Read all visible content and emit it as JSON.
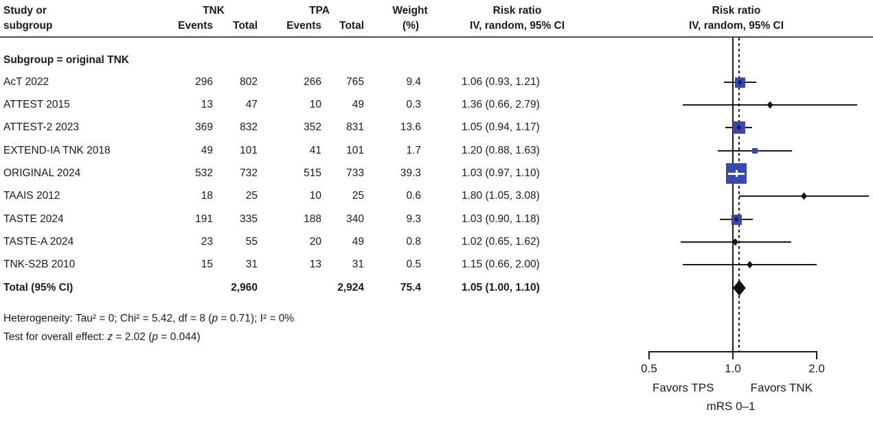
{
  "header": {
    "study_line1": "Study or",
    "study_line2": "subgroup",
    "tnk": "TNK",
    "tpa": "TPA",
    "events": "Events",
    "total": "Total",
    "weight_line1": "Weight",
    "weight_line2": "(%)",
    "risk_ratio_line1": "Risk ratio",
    "risk_ratio_line2": "IV, random, 95% CI"
  },
  "subgroup_label": "Subgroup = original TNK",
  "chart_data": {
    "type": "forest",
    "effect_measure": "Risk ratio, IV, random, 95% CI",
    "x_scale": "log",
    "x_ticks": [
      "0.5",
      "1.0",
      "2.0"
    ],
    "x_tick_values": [
      0.5,
      1.0,
      2.0
    ],
    "reference_line": 1.0,
    "pooled_estimate_line": 1.05,
    "studies": [
      {
        "name": "AcT 2022",
        "tnk_events": "296",
        "tnk_total": "802",
        "tpa_events": "266",
        "tpa_total": "765",
        "weight": "9.4",
        "weight_num": 9.4,
        "rr_text": "1.06 (0.93, 1.21)",
        "est": 1.06,
        "lo": 0.93,
        "hi": 1.21,
        "marker": "square"
      },
      {
        "name": "ATTEST 2015",
        "tnk_events": "13",
        "tnk_total": "47",
        "tpa_events": "10",
        "tpa_total": "49",
        "weight": "0.3",
        "weight_num": 0.3,
        "rr_text": "1.36 (0.66, 2.79)",
        "est": 1.36,
        "lo": 0.66,
        "hi": 2.79,
        "marker": "diamond"
      },
      {
        "name": "ATTEST-2 2023",
        "tnk_events": "369",
        "tnk_total": "832",
        "tpa_events": "352",
        "tpa_total": "831",
        "weight": "13.6",
        "weight_num": 13.6,
        "rr_text": "1.05 (0.94, 1.17)",
        "est": 1.05,
        "lo": 0.94,
        "hi": 1.17,
        "marker": "square"
      },
      {
        "name": "EXTEND-IA TNK 2018",
        "tnk_events": "49",
        "tnk_total": "101",
        "tpa_events": "41",
        "tpa_total": "101",
        "weight": "1.7",
        "weight_num": 1.7,
        "rr_text": "1.20 (0.88, 1.63)",
        "est": 1.2,
        "lo": 0.88,
        "hi": 1.63,
        "marker": "square"
      },
      {
        "name": "ORIGINAL 2024",
        "tnk_events": "532",
        "tnk_total": "732",
        "tpa_events": "515",
        "tpa_total": "733",
        "weight": "39.3",
        "weight_num": 39.3,
        "rr_text": "1.03 (0.97, 1.10)",
        "est": 1.03,
        "lo": 0.97,
        "hi": 1.1,
        "marker": "square"
      },
      {
        "name": "TAAIS 2012",
        "tnk_events": "18",
        "tnk_total": "25",
        "tpa_events": "10",
        "tpa_total": "25",
        "weight": "0.6",
        "weight_num": 0.6,
        "rr_text": "1.80 (1.05, 3.08)",
        "est": 1.8,
        "lo": 1.05,
        "hi": 3.08,
        "marker": "diamond"
      },
      {
        "name": "TASTE 2024",
        "tnk_events": "191",
        "tnk_total": "335",
        "tpa_events": "188",
        "tpa_total": "340",
        "weight": "9.3",
        "weight_num": 9.3,
        "rr_text": "1.03 (0.90, 1.18)",
        "est": 1.03,
        "lo": 0.9,
        "hi": 1.18,
        "marker": "square"
      },
      {
        "name": "TASTE-A 2024",
        "tnk_events": "23",
        "tnk_total": "55",
        "tpa_events": "20",
        "tpa_total": "49",
        "weight": "0.8",
        "weight_num": 0.8,
        "rr_text": "1.02 (0.65, 1.62)",
        "est": 1.02,
        "lo": 0.65,
        "hi": 1.62,
        "marker": "diamond"
      },
      {
        "name": "TNK-S2B 2010",
        "tnk_events": "15",
        "tnk_total": "31",
        "tpa_events": "13",
        "tpa_total": "31",
        "weight": "0.5",
        "weight_num": 0.5,
        "rr_text": "1.15 (0.66, 2.00)",
        "est": 1.15,
        "lo": 0.66,
        "hi": 2.0,
        "marker": "diamond"
      }
    ],
    "total": {
      "name": "Total (95% CI)",
      "tnk_total": "2,960",
      "tpa_total": "2,924",
      "weight": "75.4",
      "rr_text": "1.05 (1.00, 1.10)",
      "est": 1.05,
      "lo": 1.0,
      "hi": 1.1
    },
    "axis_footer": {
      "left": "Favors TPS",
      "right": "Favors TNK",
      "sub": "mRS 0–1"
    }
  },
  "footnotes": {
    "heterogeneity_segments": [
      {
        "text": "Heterogeneity: Tau² = 0; Chi² = 5.42, df = 8 (",
        "italic": false
      },
      {
        "text": "p",
        "italic": true
      },
      {
        "text": " = 0.71); I² = 0%",
        "italic": false
      }
    ],
    "overall_effect_segments": [
      {
        "text": "Test for overall effect: ",
        "italic": false
      },
      {
        "text": "z",
        "italic": true
      },
      {
        "text": " = 2.02 (",
        "italic": false
      },
      {
        "text": "p",
        "italic": true
      },
      {
        "text": " = 0.044)",
        "italic": false
      }
    ]
  },
  "colors": {
    "marker_blue": "#3a49ac",
    "marker_inner_dark": "#16204e",
    "small_marker": "#111111",
    "text": "#1a1a1a"
  }
}
